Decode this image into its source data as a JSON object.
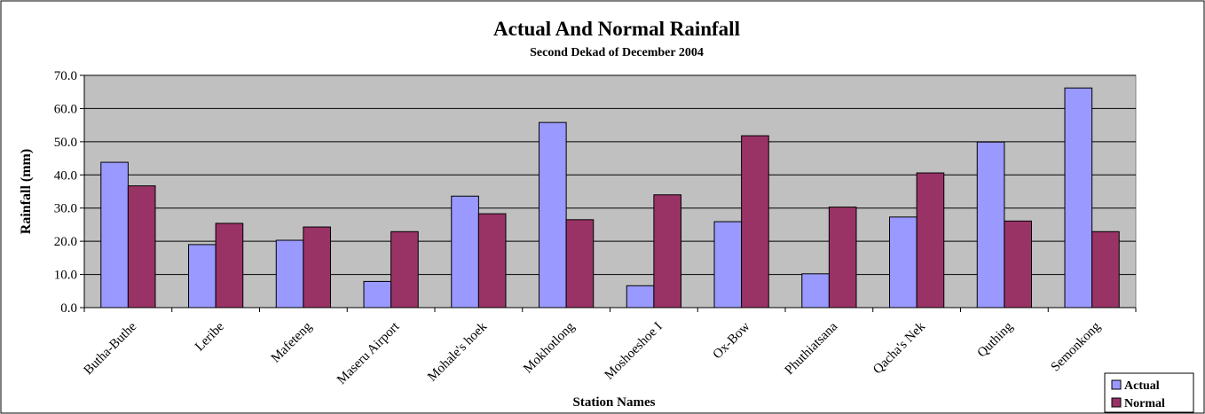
{
  "chart_data": {
    "type": "bar",
    "title": "Actual And Normal Rainfall",
    "subtitle": "Second Dekad of December  2004",
    "xlabel": "Station Names",
    "ylabel": "Rainfall (mm)",
    "ylim": [
      0,
      70
    ],
    "ytick_step": 10,
    "ytick_labels": [
      "0.0",
      "10.0",
      "20.0",
      "30.0",
      "40.0",
      "50.0",
      "60.0",
      "70.0"
    ],
    "grid": true,
    "plot_background": "#c0c0c0",
    "legend_position": "bottom-right",
    "categories": [
      "Butha-Buthe",
      "Leribe",
      "Mafeteng",
      "Maseru Airport",
      "Mohale's hoek",
      "Mokhotlong",
      "Moshoeshoe I",
      "Ox-Bow",
      "Phuthiatsana",
      "Qacha's Nek",
      "Quthing",
      "Semonkong"
    ],
    "series": [
      {
        "name": "Actual",
        "color": "#9999ff",
        "values": [
          43.8,
          19.0,
          20.3,
          7.9,
          33.6,
          55.8,
          6.6,
          25.9,
          10.2,
          27.3,
          49.9,
          66.2
        ]
      },
      {
        "name": "Normal",
        "color": "#993366",
        "values": [
          36.7,
          25.4,
          24.3,
          22.9,
          28.3,
          26.5,
          34.0,
          51.8,
          30.3,
          40.6,
          26.1,
          22.9
        ]
      }
    ]
  }
}
